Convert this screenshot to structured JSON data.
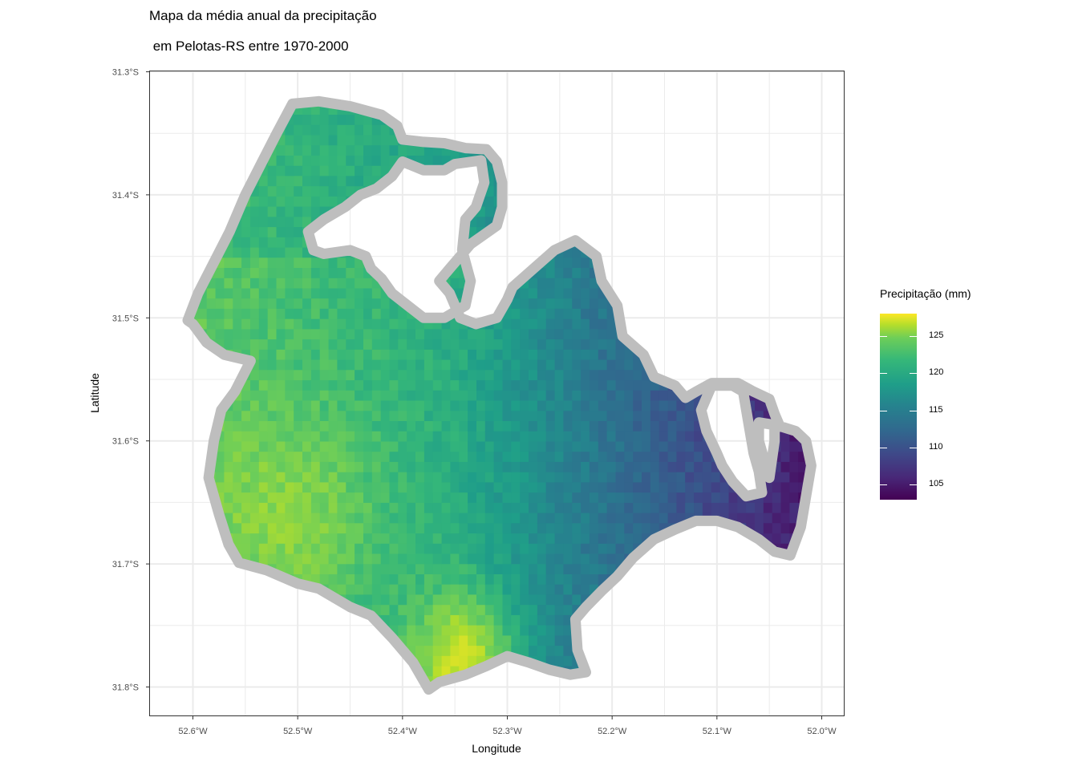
{
  "title_line1": "Mapa da média anual da precipitação",
  "title_line2": " em Pelotas-RS entre 1970-2000",
  "chart_data": {
    "type": "heatmap",
    "xlabel": "Longitude",
    "ylabel": "Latitude",
    "xlim": [
      -52.64,
      -51.98
    ],
    "ylim": [
      -31.826,
      -31.299
    ],
    "x_ticks": [
      -52.6,
      -52.5,
      -52.4,
      -52.3,
      -52.2,
      -52.1,
      -52.0
    ],
    "x_tick_labels": [
      "52.6°W",
      "52.5°W",
      "52.4°W",
      "52.3°W",
      "52.2°W",
      "52.1°W",
      "52.0°W"
    ],
    "y_ticks": [
      -31.3,
      -31.4,
      -31.5,
      -31.6,
      -31.7,
      -31.8
    ],
    "y_tick_labels": [
      "31.3°S",
      "31.4°S",
      "31.5°S",
      "31.6°S",
      "31.7°S",
      "31.8°S"
    ],
    "grid": true,
    "legend": {
      "title": "Precipitação (mm)",
      "placement": "right",
      "colormap": "viridis",
      "range": [
        103,
        128
      ],
      "ticks": [
        105,
        110,
        115,
        120,
        125
      ]
    },
    "boundary_color": "#bebebe",
    "boundary_lonlat": [
      [
        -52.505,
        -31.326
      ],
      [
        -52.48,
        -31.324
      ],
      [
        -52.45,
        -31.328
      ],
      [
        -52.42,
        -31.335
      ],
      [
        -52.405,
        -31.344
      ],
      [
        -52.4,
        -31.355
      ],
      [
        -52.38,
        -31.357
      ],
      [
        -52.36,
        -31.358
      ],
      [
        -52.34,
        -31.362
      ],
      [
        -52.32,
        -31.363
      ],
      [
        -52.31,
        -31.373
      ],
      [
        -52.305,
        -31.39
      ],
      [
        -52.305,
        -31.41
      ],
      [
        -52.31,
        -31.425
      ],
      [
        -52.335,
        -31.44
      ],
      [
        -52.355,
        -31.46
      ],
      [
        -52.365,
        -31.47
      ],
      [
        -52.355,
        -31.48
      ],
      [
        -52.345,
        -31.5
      ],
      [
        -52.33,
        -31.505
      ],
      [
        -52.31,
        -31.5
      ],
      [
        -52.3,
        -31.485
      ],
      [
        -52.295,
        -31.475
      ],
      [
        -52.275,
        -31.46
      ],
      [
        -52.255,
        -31.445
      ],
      [
        -52.235,
        -31.437
      ],
      [
        -52.215,
        -31.45
      ],
      [
        -52.21,
        -31.47
      ],
      [
        -52.195,
        -31.49
      ],
      [
        -52.19,
        -31.515
      ],
      [
        -52.17,
        -31.53
      ],
      [
        -52.16,
        -31.548
      ],
      [
        -52.14,
        -31.555
      ],
      [
        -52.13,
        -31.565
      ],
      [
        -52.12,
        -31.56
      ],
      [
        -52.105,
        -31.553
      ],
      [
        -52.08,
        -31.553
      ],
      [
        -52.065,
        -31.56
      ],
      [
        -52.05,
        -31.566
      ],
      [
        -52.045,
        -31.578
      ],
      [
        -52.04,
        -31.588
      ],
      [
        -52.025,
        -31.592
      ],
      [
        -52.015,
        -31.6
      ],
      [
        -52.01,
        -31.62
      ],
      [
        -52.02,
        -31.67
      ],
      [
        -52.03,
        -31.693
      ],
      [
        -52.045,
        -31.69
      ],
      [
        -52.06,
        -31.68
      ],
      [
        -52.08,
        -31.67
      ],
      [
        -52.1,
        -31.665
      ],
      [
        -52.12,
        -31.665
      ],
      [
        -52.14,
        -31.672
      ],
      [
        -52.16,
        -31.68
      ],
      [
        -52.18,
        -31.695
      ],
      [
        -52.195,
        -31.71
      ],
      [
        -52.21,
        -31.722
      ],
      [
        -52.225,
        -31.735
      ],
      [
        -52.235,
        -31.745
      ],
      [
        -52.233,
        -31.77
      ],
      [
        -52.225,
        -31.788
      ],
      [
        -52.24,
        -31.79
      ],
      [
        -52.26,
        -31.786
      ],
      [
        -52.28,
        -31.78
      ],
      [
        -52.3,
        -31.775
      ],
      [
        -52.32,
        -31.783
      ],
      [
        -52.34,
        -31.79
      ],
      [
        -52.365,
        -31.796
      ],
      [
        -52.375,
        -31.802
      ],
      [
        -52.39,
        -31.78
      ],
      [
        -52.41,
        -31.76
      ],
      [
        -52.43,
        -31.742
      ],
      [
        -52.45,
        -31.735
      ],
      [
        -52.48,
        -31.72
      ],
      [
        -52.5,
        -31.716
      ],
      [
        -52.53,
        -31.705
      ],
      [
        -52.556,
        -31.699
      ],
      [
        -52.566,
        -31.684
      ],
      [
        -52.575,
        -31.66
      ],
      [
        -52.585,
        -31.63
      ],
      [
        -52.58,
        -31.6
      ],
      [
        -52.573,
        -31.575
      ],
      [
        -52.56,
        -31.56
      ],
      [
        -52.545,
        -31.535
      ],
      [
        -52.57,
        -31.53
      ],
      [
        -52.587,
        -31.52
      ],
      [
        -52.6,
        -31.505
      ],
      [
        -52.605,
        -31.502
      ],
      [
        -52.595,
        -31.48
      ],
      [
        -52.565,
        -31.43
      ],
      [
        -52.55,
        -31.4
      ],
      [
        -52.535,
        -31.375
      ],
      [
        -52.52,
        -31.35
      ]
    ],
    "holes_lonlat": [
      [
        [
          -52.4,
          -31.373
        ],
        [
          -52.38,
          -31.38
        ],
        [
          -52.36,
          -31.38
        ],
        [
          -52.35,
          -31.375
        ],
        [
          -52.325,
          -31.372
        ],
        [
          -52.322,
          -31.39
        ],
        [
          -52.33,
          -31.41
        ],
        [
          -52.34,
          -31.42
        ],
        [
          -52.343,
          -31.445
        ],
        [
          -52.335,
          -31.47
        ],
        [
          -52.34,
          -31.49
        ],
        [
          -52.36,
          -31.5
        ],
        [
          -52.38,
          -31.5
        ],
        [
          -52.395,
          -31.49
        ],
        [
          -52.41,
          -31.48
        ],
        [
          -52.42,
          -31.468
        ],
        [
          -52.43,
          -31.46
        ],
        [
          -52.435,
          -31.45
        ],
        [
          -52.45,
          -31.445
        ],
        [
          -52.475,
          -31.448
        ],
        [
          -52.485,
          -31.445
        ],
        [
          -52.49,
          -31.43
        ],
        [
          -52.475,
          -31.42
        ],
        [
          -52.455,
          -31.41
        ],
        [
          -52.44,
          -31.4
        ],
        [
          -52.425,
          -31.395
        ],
        [
          -52.41,
          -31.385
        ]
      ],
      [
        [
          -52.105,
          -31.555
        ],
        [
          -52.085,
          -31.555
        ],
        [
          -52.075,
          -31.56
        ],
        [
          -52.07,
          -31.585
        ],
        [
          -52.065,
          -31.61
        ],
        [
          -52.06,
          -31.625
        ],
        [
          -52.057,
          -31.642
        ],
        [
          -52.072,
          -31.645
        ],
        [
          -52.085,
          -31.633
        ],
        [
          -52.095,
          -31.62
        ],
        [
          -52.1,
          -31.61
        ],
        [
          -52.11,
          -31.592
        ],
        [
          -52.115,
          -31.575
        ]
      ],
      [
        [
          -52.06,
          -31.585
        ],
        [
          -52.045,
          -31.587
        ],
        [
          -52.045,
          -31.6
        ],
        [
          -52.05,
          -31.63
        ],
        [
          -52.06,
          -31.6
        ]
      ]
    ],
    "cell_size_deg": 0.0083,
    "value_model": "precipitation increases from the purple east (~103 mm) to a yellow maximum near 52.34°W 31.78°S (~128 mm)"
  }
}
